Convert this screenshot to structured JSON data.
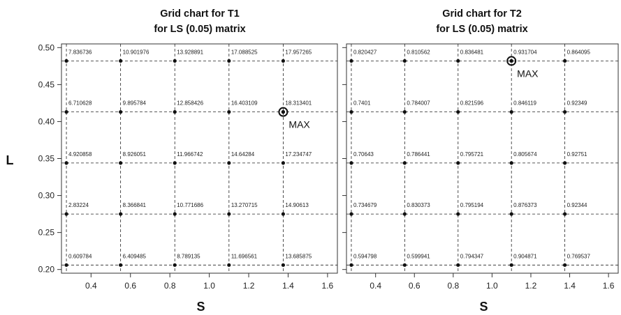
{
  "chart_data": [
    {
      "type": "scatter",
      "title_line1": "Grid chart for T1",
      "title_line2": "for LS (0.05) matrix",
      "xlabel": "S",
      "ylabel": "L",
      "xlim": [
        0.25,
        1.65
      ],
      "ylim": [
        0.195,
        0.505
      ],
      "x_ticks": [
        0.4,
        0.6,
        0.8,
        1.0,
        1.2,
        1.4,
        1.6
      ],
      "x_tick_labels": [
        "0.4",
        "0.6",
        "0.8",
        "1.0",
        "1.2",
        "1.4",
        "1.6"
      ],
      "y_ticks": [
        0.2,
        0.25,
        0.3,
        0.35,
        0.4,
        0.45,
        0.5
      ],
      "y_tick_labels": [
        "0.20",
        "0.25",
        "0.30",
        "0.35",
        "0.40",
        "0.45",
        "0.50"
      ],
      "grid_x": [
        0.275,
        0.55,
        0.825,
        1.1,
        1.375
      ],
      "grid_y": [
        0.206,
        0.275,
        0.344,
        0.413,
        0.482
      ],
      "points": [
        {
          "x": 0.275,
          "y": 0.482,
          "label": "7.836736"
        },
        {
          "x": 0.55,
          "y": 0.482,
          "label": "10.901976"
        },
        {
          "x": 0.825,
          "y": 0.482,
          "label": "13.928891"
        },
        {
          "x": 1.1,
          "y": 0.482,
          "label": "17.088525"
        },
        {
          "x": 1.375,
          "y": 0.482,
          "label": "17.957265"
        },
        {
          "x": 0.275,
          "y": 0.413,
          "label": "6.710628"
        },
        {
          "x": 0.55,
          "y": 0.413,
          "label": "9.895784"
        },
        {
          "x": 0.825,
          "y": 0.413,
          "label": "12.858426"
        },
        {
          "x": 1.1,
          "y": 0.413,
          "label": "16.403109"
        },
        {
          "x": 1.375,
          "y": 0.413,
          "label": "18.313401"
        },
        {
          "x": 0.275,
          "y": 0.344,
          "label": "4.920858"
        },
        {
          "x": 0.55,
          "y": 0.344,
          "label": "8.926051"
        },
        {
          "x": 0.825,
          "y": 0.344,
          "label": "11.966742"
        },
        {
          "x": 1.1,
          "y": 0.344,
          "label": "14.64284"
        },
        {
          "x": 1.375,
          "y": 0.344,
          "label": "17.234747"
        },
        {
          "x": 0.275,
          "y": 0.275,
          "label": "2.83224"
        },
        {
          "x": 0.55,
          "y": 0.275,
          "label": "8.366841"
        },
        {
          "x": 0.825,
          "y": 0.275,
          "label": "10.771686"
        },
        {
          "x": 1.1,
          "y": 0.275,
          "label": "13.270715"
        },
        {
          "x": 1.375,
          "y": 0.275,
          "label": "14.90613"
        },
        {
          "x": 0.275,
          "y": 0.206,
          "label": "0.609784"
        },
        {
          "x": 0.55,
          "y": 0.206,
          "label": "6.409485"
        },
        {
          "x": 0.825,
          "y": 0.206,
          "label": "8.789135"
        },
        {
          "x": 1.1,
          "y": 0.206,
          "label": "11.696561"
        },
        {
          "x": 1.375,
          "y": 0.206,
          "label": "13.685875"
        }
      ],
      "max_point": {
        "x": 1.375,
        "y": 0.413,
        "label": "MAX"
      }
    },
    {
      "type": "scatter",
      "title_line1": "Grid chart for T2",
      "title_line2": "for LS (0.05) matrix",
      "xlabel": "S",
      "ylabel": "",
      "xlim": [
        0.25,
        1.65
      ],
      "ylim": [
        0.195,
        0.505
      ],
      "x_ticks": [
        0.4,
        0.6,
        0.8,
        1.0,
        1.2,
        1.4,
        1.6
      ],
      "x_tick_labels": [
        "0.4",
        "0.6",
        "0.8",
        "1.0",
        "1.2",
        "1.4",
        "1.6"
      ],
      "y_ticks": [
        0.2,
        0.25,
        0.3,
        0.35,
        0.4,
        0.45,
        0.5
      ],
      "y_tick_labels": [],
      "grid_x": [
        0.275,
        0.55,
        0.825,
        1.1,
        1.375
      ],
      "grid_y": [
        0.206,
        0.275,
        0.344,
        0.413,
        0.482
      ],
      "points": [
        {
          "x": 0.275,
          "y": 0.482,
          "label": "0.820427"
        },
        {
          "x": 0.55,
          "y": 0.482,
          "label": "0.810562"
        },
        {
          "x": 0.825,
          "y": 0.482,
          "label": "0.836481"
        },
        {
          "x": 1.1,
          "y": 0.482,
          "label": "0.931704"
        },
        {
          "x": 1.375,
          "y": 0.482,
          "label": "0.864095"
        },
        {
          "x": 0.275,
          "y": 0.413,
          "label": "0.7401"
        },
        {
          "x": 0.55,
          "y": 0.413,
          "label": "0.784007"
        },
        {
          "x": 0.825,
          "y": 0.413,
          "label": "0.821596"
        },
        {
          "x": 1.1,
          "y": 0.413,
          "label": "0.846119"
        },
        {
          "x": 1.375,
          "y": 0.413,
          "label": "0.92349"
        },
        {
          "x": 0.275,
          "y": 0.344,
          "label": "0.70643"
        },
        {
          "x": 0.55,
          "y": 0.344,
          "label": "0.786441"
        },
        {
          "x": 0.825,
          "y": 0.344,
          "label": "0.795721"
        },
        {
          "x": 1.1,
          "y": 0.344,
          "label": "0.805674"
        },
        {
          "x": 1.375,
          "y": 0.344,
          "label": "0.92751"
        },
        {
          "x": 0.275,
          "y": 0.275,
          "label": "0.734679"
        },
        {
          "x": 0.55,
          "y": 0.275,
          "label": "0.830373"
        },
        {
          "x": 0.825,
          "y": 0.275,
          "label": "0.795194"
        },
        {
          "x": 1.1,
          "y": 0.275,
          "label": "0.876373"
        },
        {
          "x": 1.375,
          "y": 0.275,
          "label": "0.92344"
        },
        {
          "x": 0.275,
          "y": 0.206,
          "label": "0.594798"
        },
        {
          "x": 0.55,
          "y": 0.206,
          "label": "0.599941"
        },
        {
          "x": 0.825,
          "y": 0.206,
          "label": "0.794347"
        },
        {
          "x": 1.1,
          "y": 0.206,
          "label": "0.904871"
        },
        {
          "x": 1.375,
          "y": 0.206,
          "label": "0.769537"
        }
      ],
      "max_point": {
        "x": 1.1,
        "y": 0.482,
        "label": "MAX"
      }
    }
  ]
}
